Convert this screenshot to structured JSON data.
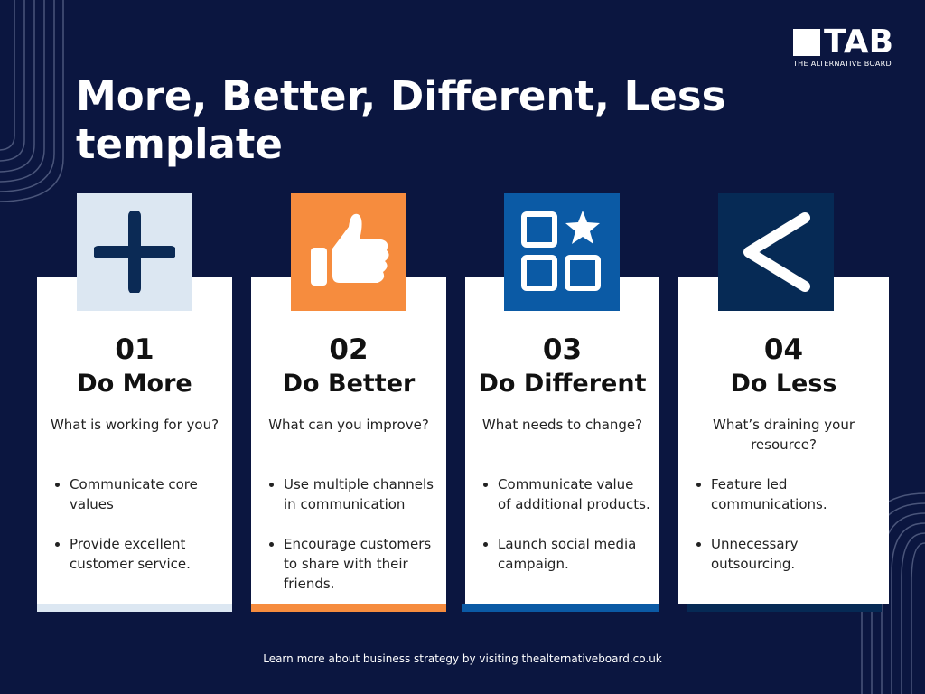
{
  "title": "More, Better, Different, Less template",
  "logo": {
    "name": "TAB",
    "tagline": "THE ALTERNATIVE BOARD"
  },
  "cards": [
    {
      "number": "01",
      "title": "Do More",
      "question": "What is working for you?",
      "bullets": [
        "Communicate core values",
        "Provide excellent customer service."
      ],
      "icon": "plus-icon",
      "color": "#dce7f2"
    },
    {
      "number": "02",
      "title": "Do Better",
      "question": "What can you improve?",
      "bullets": [
        "Use multiple channels in communication",
        "Encourage customers to share with their friends."
      ],
      "icon": "thumbs-up-icon",
      "color": "#f68c3e"
    },
    {
      "number": "03",
      "title": "Do Different",
      "question": "What needs to change?",
      "bullets": [
        "Communicate value of additional products.",
        "Launch social media campaign."
      ],
      "icon": "grid-star-icon",
      "color": "#0b5aa5"
    },
    {
      "number": "04",
      "title": "Do Less",
      "question": "What’s draining your resource?",
      "bullets": [
        "Feature led communications.",
        "Unnecessary outsourcing."
      ],
      "icon": "less-than-icon",
      "color": "#062a55"
    }
  ],
  "footer": "Learn more about business strategy by visiting thealternativeboard.co.uk"
}
